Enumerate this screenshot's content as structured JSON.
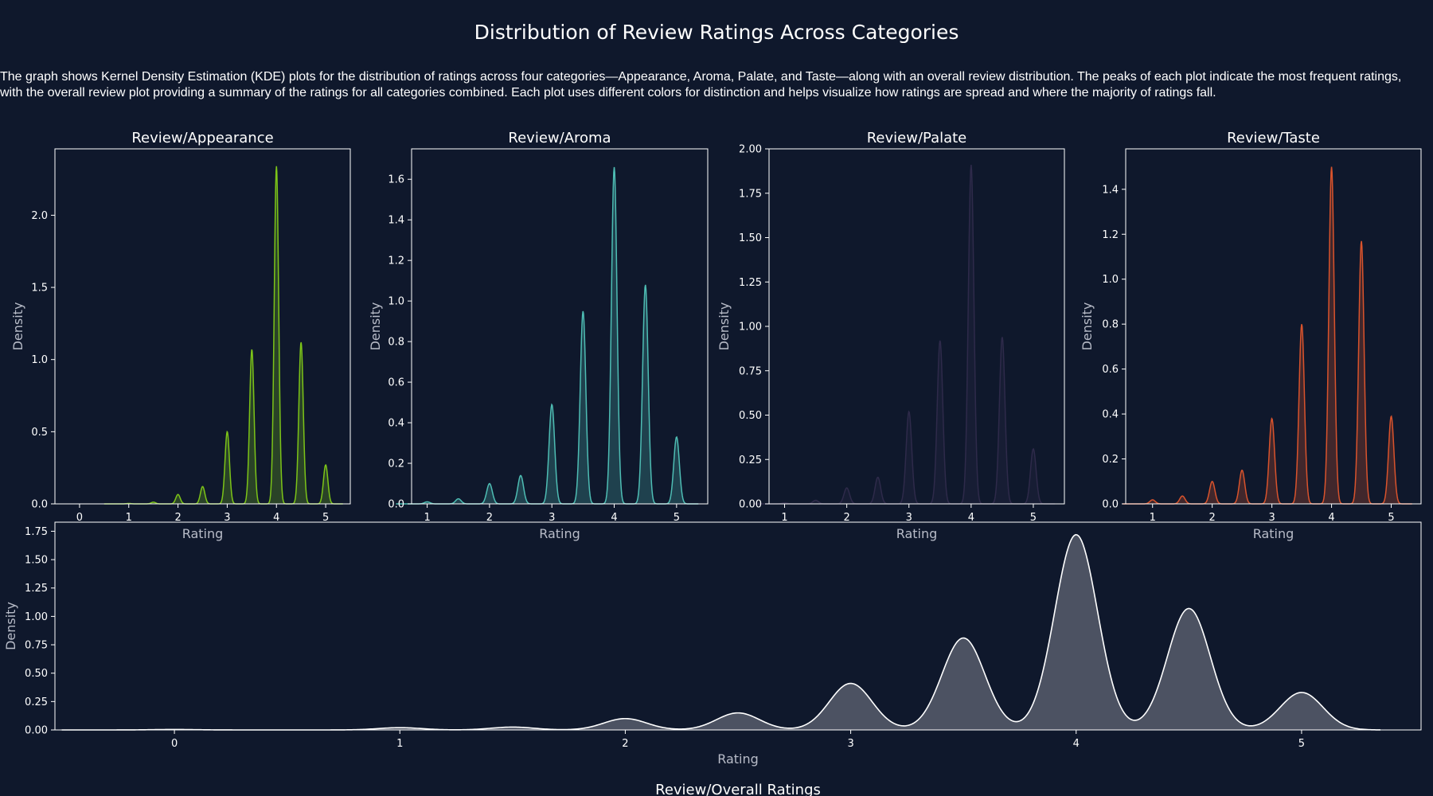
{
  "page": {
    "title": "Distribution of Review Ratings Across Categories",
    "description": "The graph shows Kernel Density Estimation (KDE) plots for the distribution of ratings across four categories—Appearance, Aroma, Palate, and Taste—along with an overall review distribution. The peaks of each plot indicate the most frequent ratings, with the overall review plot providing a summary of the ratings for all categories combined. Each plot uses different colors for distinction and helps visualize how ratings are spread and where the majority of ratings fall."
  },
  "chart_data": [
    {
      "type": "area",
      "title": "Review/Appearance",
      "xlabel": "Rating",
      "ylabel": "Density",
      "color": "#7cc418",
      "xlim": [
        -0.5,
        5.5
      ],
      "ylim": [
        0,
        2.46
      ],
      "xticks": [
        0,
        1,
        2,
        3,
        4,
        5
      ],
      "yticks": [
        0.0,
        0.5,
        1.0,
        1.5,
        2.0
      ],
      "ytick_labels": [
        "0.0",
        "0.5",
        "1.0",
        "1.5",
        "2.0"
      ],
      "peaks": [
        {
          "x": 1.0,
          "y": 0.003
        },
        {
          "x": 1.5,
          "y": 0.012
        },
        {
          "x": 2.0,
          "y": 0.065
        },
        {
          "x": 2.5,
          "y": 0.12
        },
        {
          "x": 3.0,
          "y": 0.5
        },
        {
          "x": 3.5,
          "y": 1.07
        },
        {
          "x": 4.0,
          "y": 2.34
        },
        {
          "x": 4.5,
          "y": 1.12
        },
        {
          "x": 5.0,
          "y": 0.27
        }
      ]
    },
    {
      "type": "area",
      "title": "Review/Aroma",
      "xlabel": "Rating",
      "ylabel": "Density",
      "color": "#4ebdb4",
      "xlim": [
        0.75,
        5.5
      ],
      "ylim": [
        0,
        1.75
      ],
      "xticks": [
        1,
        2,
        3,
        4,
        5
      ],
      "yticks": [
        0.0,
        0.2,
        0.4,
        0.6,
        0.8,
        1.0,
        1.2,
        1.4,
        1.6
      ],
      "ytick_labels": [
        "0.0",
        "0.2",
        "0.4",
        "0.6",
        "0.8",
        "1.0",
        "1.2",
        "1.4",
        "1.6"
      ],
      "peaks": [
        {
          "x": 1.0,
          "y": 0.01
        },
        {
          "x": 1.5,
          "y": 0.025
        },
        {
          "x": 2.0,
          "y": 0.1
        },
        {
          "x": 2.5,
          "y": 0.14
        },
        {
          "x": 3.0,
          "y": 0.49
        },
        {
          "x": 3.5,
          "y": 0.95
        },
        {
          "x": 4.0,
          "y": 1.66
        },
        {
          "x": 4.5,
          "y": 1.08
        },
        {
          "x": 5.0,
          "y": 0.33
        }
      ]
    },
    {
      "type": "area",
      "title": "Review/Palate",
      "xlabel": "Rating",
      "ylabel": "Density",
      "color": "#2e2a4a",
      "xlim": [
        0.75,
        5.5
      ],
      "ylim": [
        0,
        2.0
      ],
      "xticks": [
        1,
        2,
        3,
        4,
        5
      ],
      "yticks": [
        0.0,
        0.25,
        0.5,
        0.75,
        1.0,
        1.25,
        1.5,
        1.75,
        2.0
      ],
      "ytick_labels": [
        "0.00",
        "0.25",
        "0.50",
        "0.75",
        "1.00",
        "1.25",
        "1.50",
        "1.75",
        "2.00"
      ],
      "peaks": [
        {
          "x": 1.0,
          "y": 0.005
        },
        {
          "x": 1.5,
          "y": 0.02
        },
        {
          "x": 2.0,
          "y": 0.09
        },
        {
          "x": 2.5,
          "y": 0.15
        },
        {
          "x": 3.0,
          "y": 0.52
        },
        {
          "x": 3.5,
          "y": 0.92
        },
        {
          "x": 4.0,
          "y": 1.91
        },
        {
          "x": 4.5,
          "y": 0.94
        },
        {
          "x": 5.0,
          "y": 0.31
        }
      ]
    },
    {
      "type": "area",
      "title": "Review/Taste",
      "xlabel": "Rating",
      "ylabel": "Density",
      "color": "#d9532c",
      "xlim": [
        0.55,
        5.5
      ],
      "ylim": [
        0,
        1.58
      ],
      "xticks": [
        1,
        2,
        3,
        4,
        5
      ],
      "yticks": [
        0.0,
        0.2,
        0.4,
        0.6,
        0.8,
        1.0,
        1.2,
        1.4
      ],
      "ytick_labels": [
        "0.0",
        "0.2",
        "0.4",
        "0.6",
        "0.8",
        "1.0",
        "1.2",
        "1.4"
      ],
      "peaks": [
        {
          "x": 1.0,
          "y": 0.018
        },
        {
          "x": 1.5,
          "y": 0.035
        },
        {
          "x": 2.0,
          "y": 0.1
        },
        {
          "x": 2.5,
          "y": 0.15
        },
        {
          "x": 3.0,
          "y": 0.38
        },
        {
          "x": 3.5,
          "y": 0.8
        },
        {
          "x": 4.0,
          "y": 1.5
        },
        {
          "x": 4.5,
          "y": 1.17
        },
        {
          "x": 5.0,
          "y": 0.39
        }
      ]
    },
    {
      "type": "area",
      "title": "Review/Overall Ratings",
      "xlabel": "Rating",
      "ylabel": "Density",
      "color": "#ffffff",
      "fill_color": "#4c5262",
      "xlim": [
        -0.53,
        5.53
      ],
      "ylim": [
        0,
        1.83
      ],
      "xticks": [
        0,
        1,
        2,
        3,
        4,
        5
      ],
      "yticks": [
        0.0,
        0.25,
        0.5,
        0.75,
        1.0,
        1.25,
        1.5,
        1.75
      ],
      "ytick_labels": [
        "0.00",
        "0.25",
        "0.50",
        "0.75",
        "1.00",
        "1.25",
        "1.50",
        "1.75"
      ],
      "peaks": [
        {
          "x": 0.0,
          "y": 0.004
        },
        {
          "x": 1.0,
          "y": 0.02
        },
        {
          "x": 1.5,
          "y": 0.025
        },
        {
          "x": 2.0,
          "y": 0.1
        },
        {
          "x": 2.5,
          "y": 0.15
        },
        {
          "x": 3.0,
          "y": 0.41
        },
        {
          "x": 3.5,
          "y": 0.81
        },
        {
          "x": 4.0,
          "y": 1.72
        },
        {
          "x": 4.5,
          "y": 1.07
        },
        {
          "x": 5.0,
          "y": 0.33
        }
      ]
    }
  ]
}
